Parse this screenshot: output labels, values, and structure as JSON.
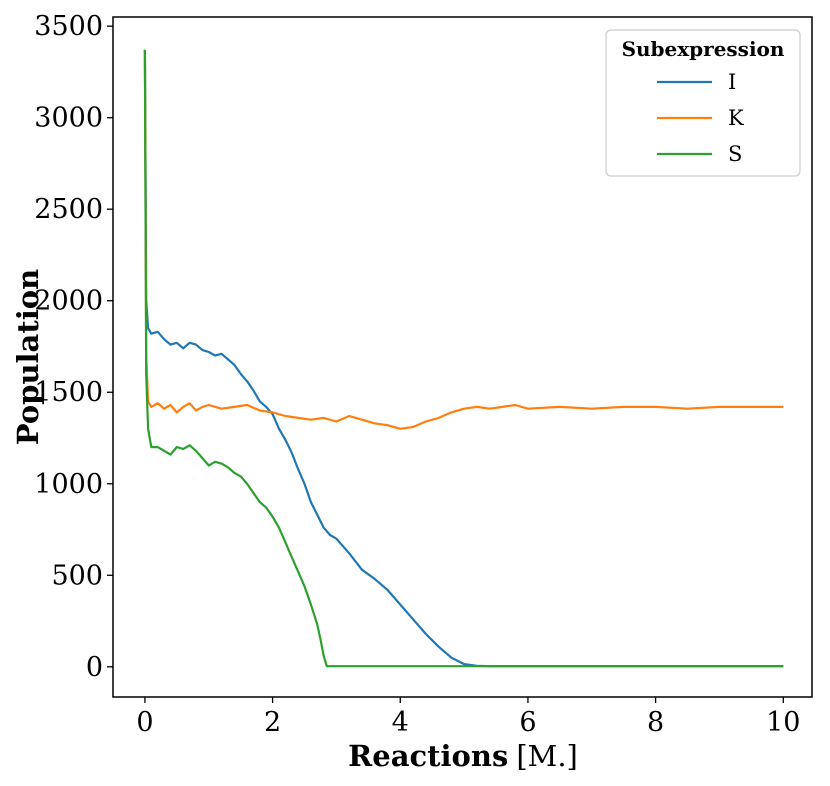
{
  "chart_data": {
    "type": "line",
    "title": "",
    "xlabel": "Reactions",
    "xlabel_unit": "[M.]",
    "ylabel": "Population",
    "xlim": [
      -0.5,
      10.45
    ],
    "ylim": [
      -165,
      3550
    ],
    "xticks": [
      0,
      2,
      4,
      6,
      8,
      10
    ],
    "yticks": [
      0,
      500,
      1000,
      1500,
      2000,
      2500,
      3000,
      3500
    ],
    "grid": false,
    "legend": {
      "title": "Subexpression",
      "position": "top-right"
    },
    "series": [
      {
        "name": "I",
        "color": "#1f77b4",
        "x": [
          0,
          0.02,
          0.05,
          0.1,
          0.2,
          0.3,
          0.4,
          0.5,
          0.6,
          0.7,
          0.8,
          0.9,
          1.0,
          1.1,
          1.2,
          1.3,
          1.4,
          1.5,
          1.6,
          1.7,
          1.8,
          1.9,
          2.0,
          2.1,
          2.2,
          2.3,
          2.4,
          2.5,
          2.6,
          2.7,
          2.8,
          2.9,
          3.0,
          3.2,
          3.4,
          3.6,
          3.8,
          4.0,
          4.2,
          4.4,
          4.6,
          4.8,
          5.0,
          5.2,
          5.4,
          6.0,
          7.0,
          8.0,
          9.0,
          10.0
        ],
        "y": [
          3370,
          2000,
          1850,
          1820,
          1830,
          1790,
          1760,
          1770,
          1740,
          1770,
          1760,
          1730,
          1720,
          1700,
          1710,
          1680,
          1650,
          1600,
          1560,
          1510,
          1450,
          1420,
          1380,
          1300,
          1240,
          1170,
          1080,
          1000,
          900,
          830,
          760,
          720,
          700,
          620,
          530,
          480,
          420,
          340,
          260,
          180,
          110,
          50,
          15,
          5,
          3,
          3,
          3,
          3,
          3,
          3
        ]
      },
      {
        "name": "K",
        "color": "#ff7f0e",
        "x": [
          0,
          0.02,
          0.05,
          0.1,
          0.2,
          0.3,
          0.4,
          0.5,
          0.6,
          0.7,
          0.8,
          0.9,
          1.0,
          1.2,
          1.4,
          1.6,
          1.8,
          2.0,
          2.2,
          2.4,
          2.6,
          2.8,
          3.0,
          3.2,
          3.4,
          3.6,
          3.8,
          4.0,
          4.2,
          4.4,
          4.6,
          4.8,
          5.0,
          5.2,
          5.4,
          5.6,
          5.8,
          6.0,
          6.5,
          7.0,
          7.5,
          8.0,
          8.5,
          9.0,
          9.5,
          10.0
        ],
        "y": [
          3370,
          1700,
          1450,
          1420,
          1440,
          1410,
          1430,
          1390,
          1420,
          1440,
          1400,
          1420,
          1430,
          1410,
          1420,
          1430,
          1400,
          1390,
          1370,
          1360,
          1350,
          1360,
          1340,
          1370,
          1350,
          1330,
          1320,
          1300,
          1310,
          1340,
          1360,
          1390,
          1410,
          1420,
          1410,
          1420,
          1430,
          1410,
          1420,
          1410,
          1420,
          1420,
          1410,
          1420,
          1420,
          1420
        ]
      },
      {
        "name": "S",
        "color": "#2ca02c",
        "x": [
          0,
          0.02,
          0.05,
          0.1,
          0.2,
          0.3,
          0.4,
          0.5,
          0.6,
          0.7,
          0.8,
          0.9,
          1.0,
          1.1,
          1.2,
          1.3,
          1.4,
          1.5,
          1.6,
          1.7,
          1.8,
          1.9,
          2.0,
          2.1,
          2.2,
          2.3,
          2.4,
          2.5,
          2.6,
          2.7,
          2.75,
          2.8,
          2.85,
          3.0,
          4.0,
          5.0,
          6.0,
          7.0,
          8.0,
          9.0,
          10.0
        ],
        "y": [
          3370,
          1600,
          1300,
          1200,
          1200,
          1180,
          1160,
          1200,
          1190,
          1210,
          1180,
          1140,
          1100,
          1120,
          1110,
          1090,
          1060,
          1040,
          1000,
          950,
          900,
          870,
          820,
          760,
          680,
          600,
          520,
          440,
          340,
          230,
          150,
          60,
          3,
          3,
          3,
          3,
          3,
          3,
          3,
          3,
          3
        ]
      }
    ]
  }
}
